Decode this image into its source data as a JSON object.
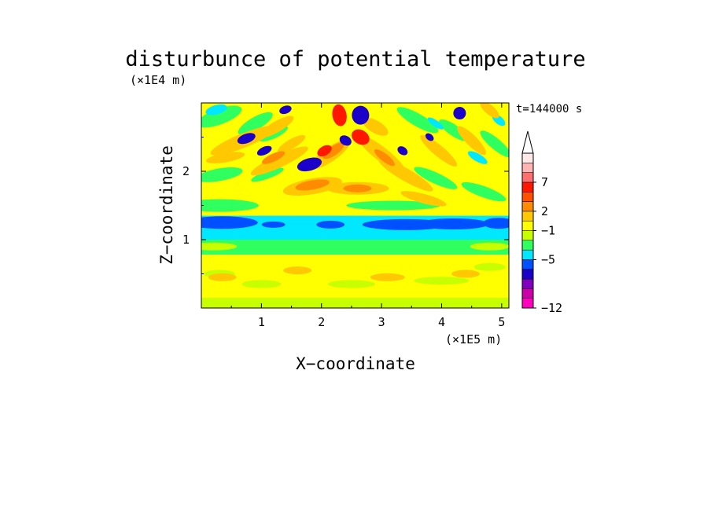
{
  "chart_data": {
    "type": "heatmap",
    "title": "disturbunce of potential temperature",
    "time_label": "t=144000 s",
    "xlabel": "X−coordinate",
    "ylabel": "Z−coordinate",
    "x_unit": "(×1E5 m)",
    "y_unit": "(×1E4 m)",
    "xlim": [
      0,
      5.12
    ],
    "ylim": [
      0,
      3
    ],
    "x_ticks": [
      "1",
      "2",
      "3",
      "4",
      "5"
    ],
    "y_ticks": [
      "1",
      "2"
    ],
    "colorbar": {
      "labels": [
        "−12",
        "−5",
        "−1",
        "2",
        "7"
      ],
      "colors": [
        "#ff00c0",
        "#cc00a8",
        "#8000c0",
        "#1a00c8",
        "#0050ff",
        "#00e8ff",
        "#30ff60",
        "#c8ff00",
        "#ffff00",
        "#ffc800",
        "#ff8c00",
        "#ff5000",
        "#ff1800",
        "#ff6f6f",
        "#ffb4b4",
        "#ffe8e8"
      ]
    },
    "bands": [
      {
        "z_range": [
          0.0,
          0.15
        ],
        "value": "0 to 1",
        "color": "yellow/green"
      },
      {
        "z_range": [
          0.15,
          0.78
        ],
        "value": "0 to 1",
        "color": "yellow"
      },
      {
        "z_range": [
          0.78,
          1.0
        ],
        "value": "-1 to 0",
        "color": "green"
      },
      {
        "z_range": [
          1.0,
          1.35
        ],
        "value": "-2 to -1",
        "color": "cyan"
      },
      {
        "z_range": [
          1.15,
          1.3
        ],
        "value": "-5 to -2",
        "color": "blue"
      },
      {
        "z_range": [
          1.35,
          3.0
        ],
        "value": "-5 to 9",
        "color": "wave pattern"
      }
    ],
    "features": [
      {
        "x": 2.3,
        "z": 2.85,
        "value": "7 to 9",
        "color": "red"
      },
      {
        "x": 2.65,
        "z": 2.85,
        "value": "-5 to -3",
        "color": "dark blue"
      },
      {
        "x": 2.65,
        "z": 2.5,
        "value": "5 to 7",
        "color": "red"
      },
      {
        "x": 2.05,
        "z": 2.3,
        "value": "5 to 7",
        "color": "red"
      },
      {
        "x": 1.8,
        "z": 2.1,
        "value": "-5 to -3",
        "color": "dark blue"
      },
      {
        "x": 1.85,
        "z": 1.8,
        "value": "3 to 5",
        "color": "orange"
      }
    ]
  }
}
